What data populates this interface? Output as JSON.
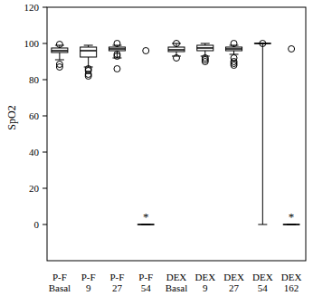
{
  "chart_data": {
    "type": "box",
    "y_label": "SpO2",
    "categories": [
      "P-F Basal",
      "P-F 9",
      "P-F 27",
      "P-F 54",
      "DEX Basal",
      "DEX 9",
      "DEX 27",
      "DEX 54",
      "DEX 162"
    ],
    "boxes": [
      {
        "whisker_low": 91,
        "q1": 95,
        "median": 96,
        "q3": 97.5,
        "whisker_high": 99,
        "outliers": [
          87,
          88.5,
          99.5
        ]
      },
      {
        "whisker_low": 87,
        "q1": 92.5,
        "median": 96,
        "q3": 98,
        "whisker_high": 99,
        "outliers": [
          82,
          83,
          85,
          86
        ]
      },
      {
        "whisker_low": 92,
        "q1": 96,
        "median": 97,
        "q3": 98,
        "whisker_high": 99,
        "outliers": [
          86,
          93,
          94,
          100
        ]
      },
      {
        "whisker_low": 0,
        "q1": 0,
        "median": 0,
        "q3": 0,
        "whisker_high": 0,
        "outliers": [
          96
        ]
      },
      {
        "whisker_low": 93,
        "q1": 95.5,
        "median": 96.5,
        "q3": 98,
        "whisker_high": 100,
        "outliers": [
          92,
          100
        ]
      },
      {
        "whisker_low": 93,
        "q1": 96,
        "median": 97.5,
        "q3": 99,
        "whisker_high": 100,
        "outliers": [
          90,
          91,
          92
        ]
      },
      {
        "whisker_low": 94,
        "q1": 96,
        "median": 97,
        "q3": 98,
        "whisker_high": 99,
        "outliers": [
          88,
          89,
          90,
          92,
          100
        ]
      },
      {
        "whisker_low": 0,
        "q1": 100,
        "median": 100,
        "q3": 100,
        "whisker_high": 100,
        "outliers": [
          100
        ]
      },
      {
        "whisker_low": 0,
        "q1": 0,
        "median": 0,
        "q3": 0,
        "whisker_high": 0,
        "outliers": [
          97
        ]
      }
    ],
    "annotations": [
      {
        "text": "*",
        "category": "P-F 54"
      },
      {
        "text": "*",
        "category": "DEX 162"
      }
    ],
    "ylim": [
      -20,
      120
    ],
    "yticks": [
      0,
      20,
      40,
      60,
      80,
      100,
      120
    ],
    "color": "#000000"
  }
}
